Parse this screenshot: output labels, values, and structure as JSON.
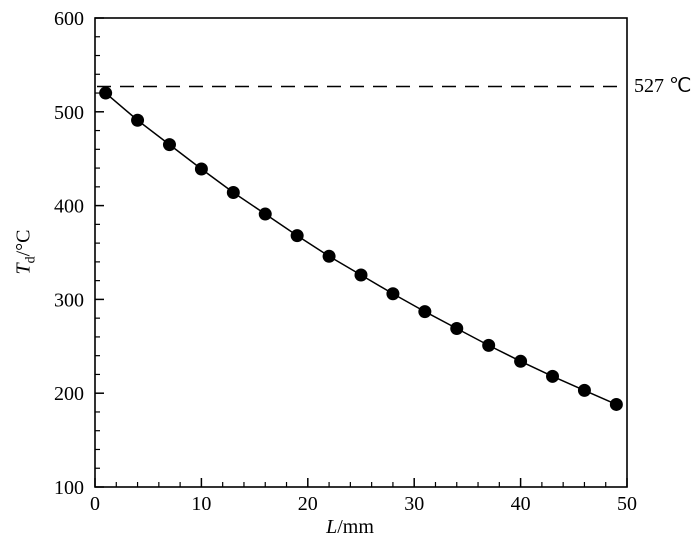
{
  "chart_data": {
    "type": "scatter",
    "title": "",
    "xlabel": "L/mm",
    "ylabel": "Td/°C",
    "xlabel_parts": {
      "symbol": "L",
      "unit": "/mm"
    },
    "ylabel_parts": {
      "symbol": "T",
      "sub": "d",
      "unit": "/°C"
    },
    "x": [
      1,
      4,
      7,
      10,
      13,
      16,
      19,
      22,
      25,
      28,
      31,
      34,
      37,
      40,
      43,
      46,
      49
    ],
    "y": [
      520,
      491,
      465,
      439,
      414,
      391,
      368,
      346,
      326,
      306,
      287,
      269,
      251,
      234,
      218,
      203,
      188
    ],
    "xlim": [
      0,
      50
    ],
    "ylim": [
      100,
      600
    ],
    "x_major_ticks": [
      0,
      10,
      20,
      30,
      40,
      50
    ],
    "y_major_ticks": [
      100,
      200,
      300,
      400,
      500,
      600
    ],
    "x_minor_step": 2,
    "y_minor_step": 20,
    "grid": "off",
    "legend": "none",
    "annotation": {
      "text": "527 ℃",
      "value": 527,
      "style": "dashed-horizontal-line"
    },
    "marker": {
      "shape": "circle",
      "color": "#000000",
      "radius": 6.5
    },
    "line_color": "#000000",
    "axis_color": "#000000"
  }
}
